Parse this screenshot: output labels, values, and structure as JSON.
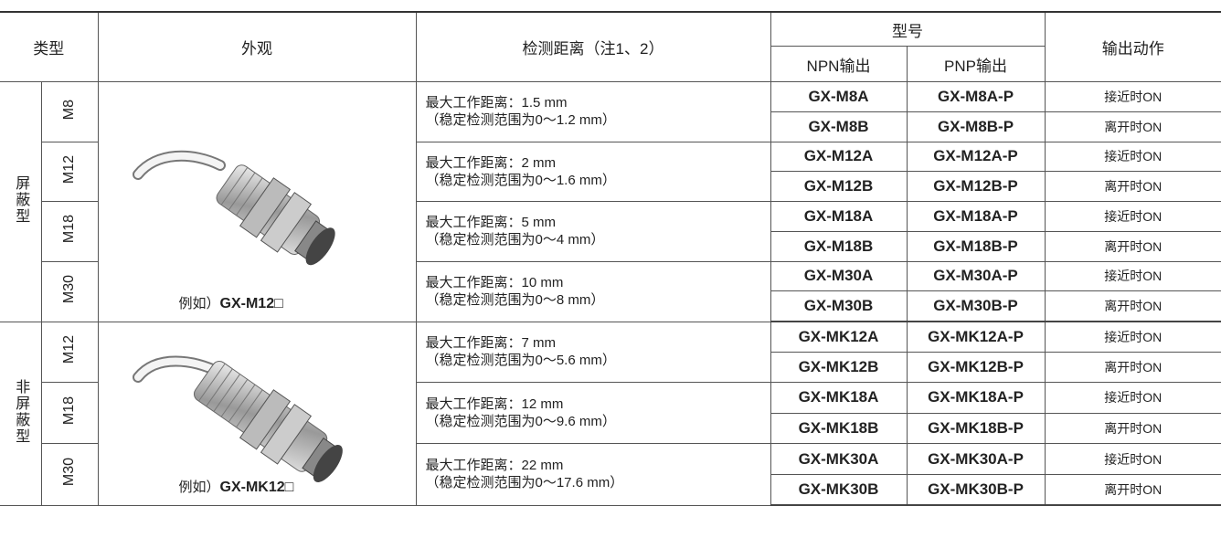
{
  "header": {
    "type": "类型",
    "appearance": "外观",
    "distance": "检测距离（注1、2）",
    "model": "型号",
    "npn": "NPN输出",
    "pnp": "PNP输出",
    "action": "输出动作"
  },
  "groups": [
    {
      "type": "屏蔽型",
      "example_prefix": "例如）",
      "example_model": "GX-M12□",
      "sizes": [
        {
          "size": "M8",
          "distance": "最大工作距离：1.5 mm",
          "range": "（稳定检测范围为0～1.2 mm）",
          "rows": [
            {
              "npn": "GX-M8A",
              "pnp": "GX-M8A-P",
              "action": "接近时ON"
            },
            {
              "npn": "GX-M8B",
              "pnp": "GX-M8B-P",
              "action": "离开时ON"
            }
          ]
        },
        {
          "size": "M12",
          "distance": "最大工作距离：2 mm",
          "range": "（稳定检测范围为0～1.6 mm）",
          "rows": [
            {
              "npn": "GX-M12A",
              "pnp": "GX-M12A-P",
              "action": "接近时ON"
            },
            {
              "npn": "GX-M12B",
              "pnp": "GX-M12B-P",
              "action": "离开时ON"
            }
          ]
        },
        {
          "size": "M18",
          "distance": "最大工作距离：5 mm",
          "range": "（稳定检测范围为0～4 mm）",
          "rows": [
            {
              "npn": "GX-M18A",
              "pnp": "GX-M18A-P",
              "action": "接近时ON"
            },
            {
              "npn": "GX-M18B",
              "pnp": "GX-M18B-P",
              "action": "离开时ON"
            }
          ]
        },
        {
          "size": "M30",
          "distance": "最大工作距离：10 mm",
          "range": "（稳定检测范围为0～8 mm）",
          "rows": [
            {
              "npn": "GX-M30A",
              "pnp": "GX-M30A-P",
              "action": "接近时ON"
            },
            {
              "npn": "GX-M30B",
              "pnp": "GX-M30B-P",
              "action": "离开时ON"
            }
          ]
        }
      ]
    },
    {
      "type": "非屏蔽型",
      "example_prefix": "例如）",
      "example_model": "GX-MK12□",
      "sizes": [
        {
          "size": "M12",
          "distance": "最大工作距离：7 mm",
          "range": "（稳定检测范围为0～5.6 mm）",
          "rows": [
            {
              "npn": "GX-MK12A",
              "pnp": "GX-MK12A-P",
              "action": "接近时ON"
            },
            {
              "npn": "GX-MK12B",
              "pnp": "GX-MK12B-P",
              "action": "离开时ON"
            }
          ]
        },
        {
          "size": "M18",
          "distance": "最大工作距离：12 mm",
          "range": "（稳定检测范围为0～9.6 mm）",
          "rows": [
            {
              "npn": "GX-MK18A",
              "pnp": "GX-MK18A-P",
              "action": "接近时ON"
            },
            {
              "npn": "GX-MK18B",
              "pnp": "GX-MK18B-P",
              "action": "离开时ON"
            }
          ]
        },
        {
          "size": "M30",
          "distance": "最大工作距离：22 mm",
          "range": "（稳定检测范围为0～17.6 mm）",
          "rows": [
            {
              "npn": "GX-MK30A",
              "pnp": "GX-MK30A-P",
              "action": "接近时ON"
            },
            {
              "npn": "GX-MK30B",
              "pnp": "GX-MK30B-P",
              "action": "离开时ON"
            }
          ]
        }
      ]
    }
  ]
}
